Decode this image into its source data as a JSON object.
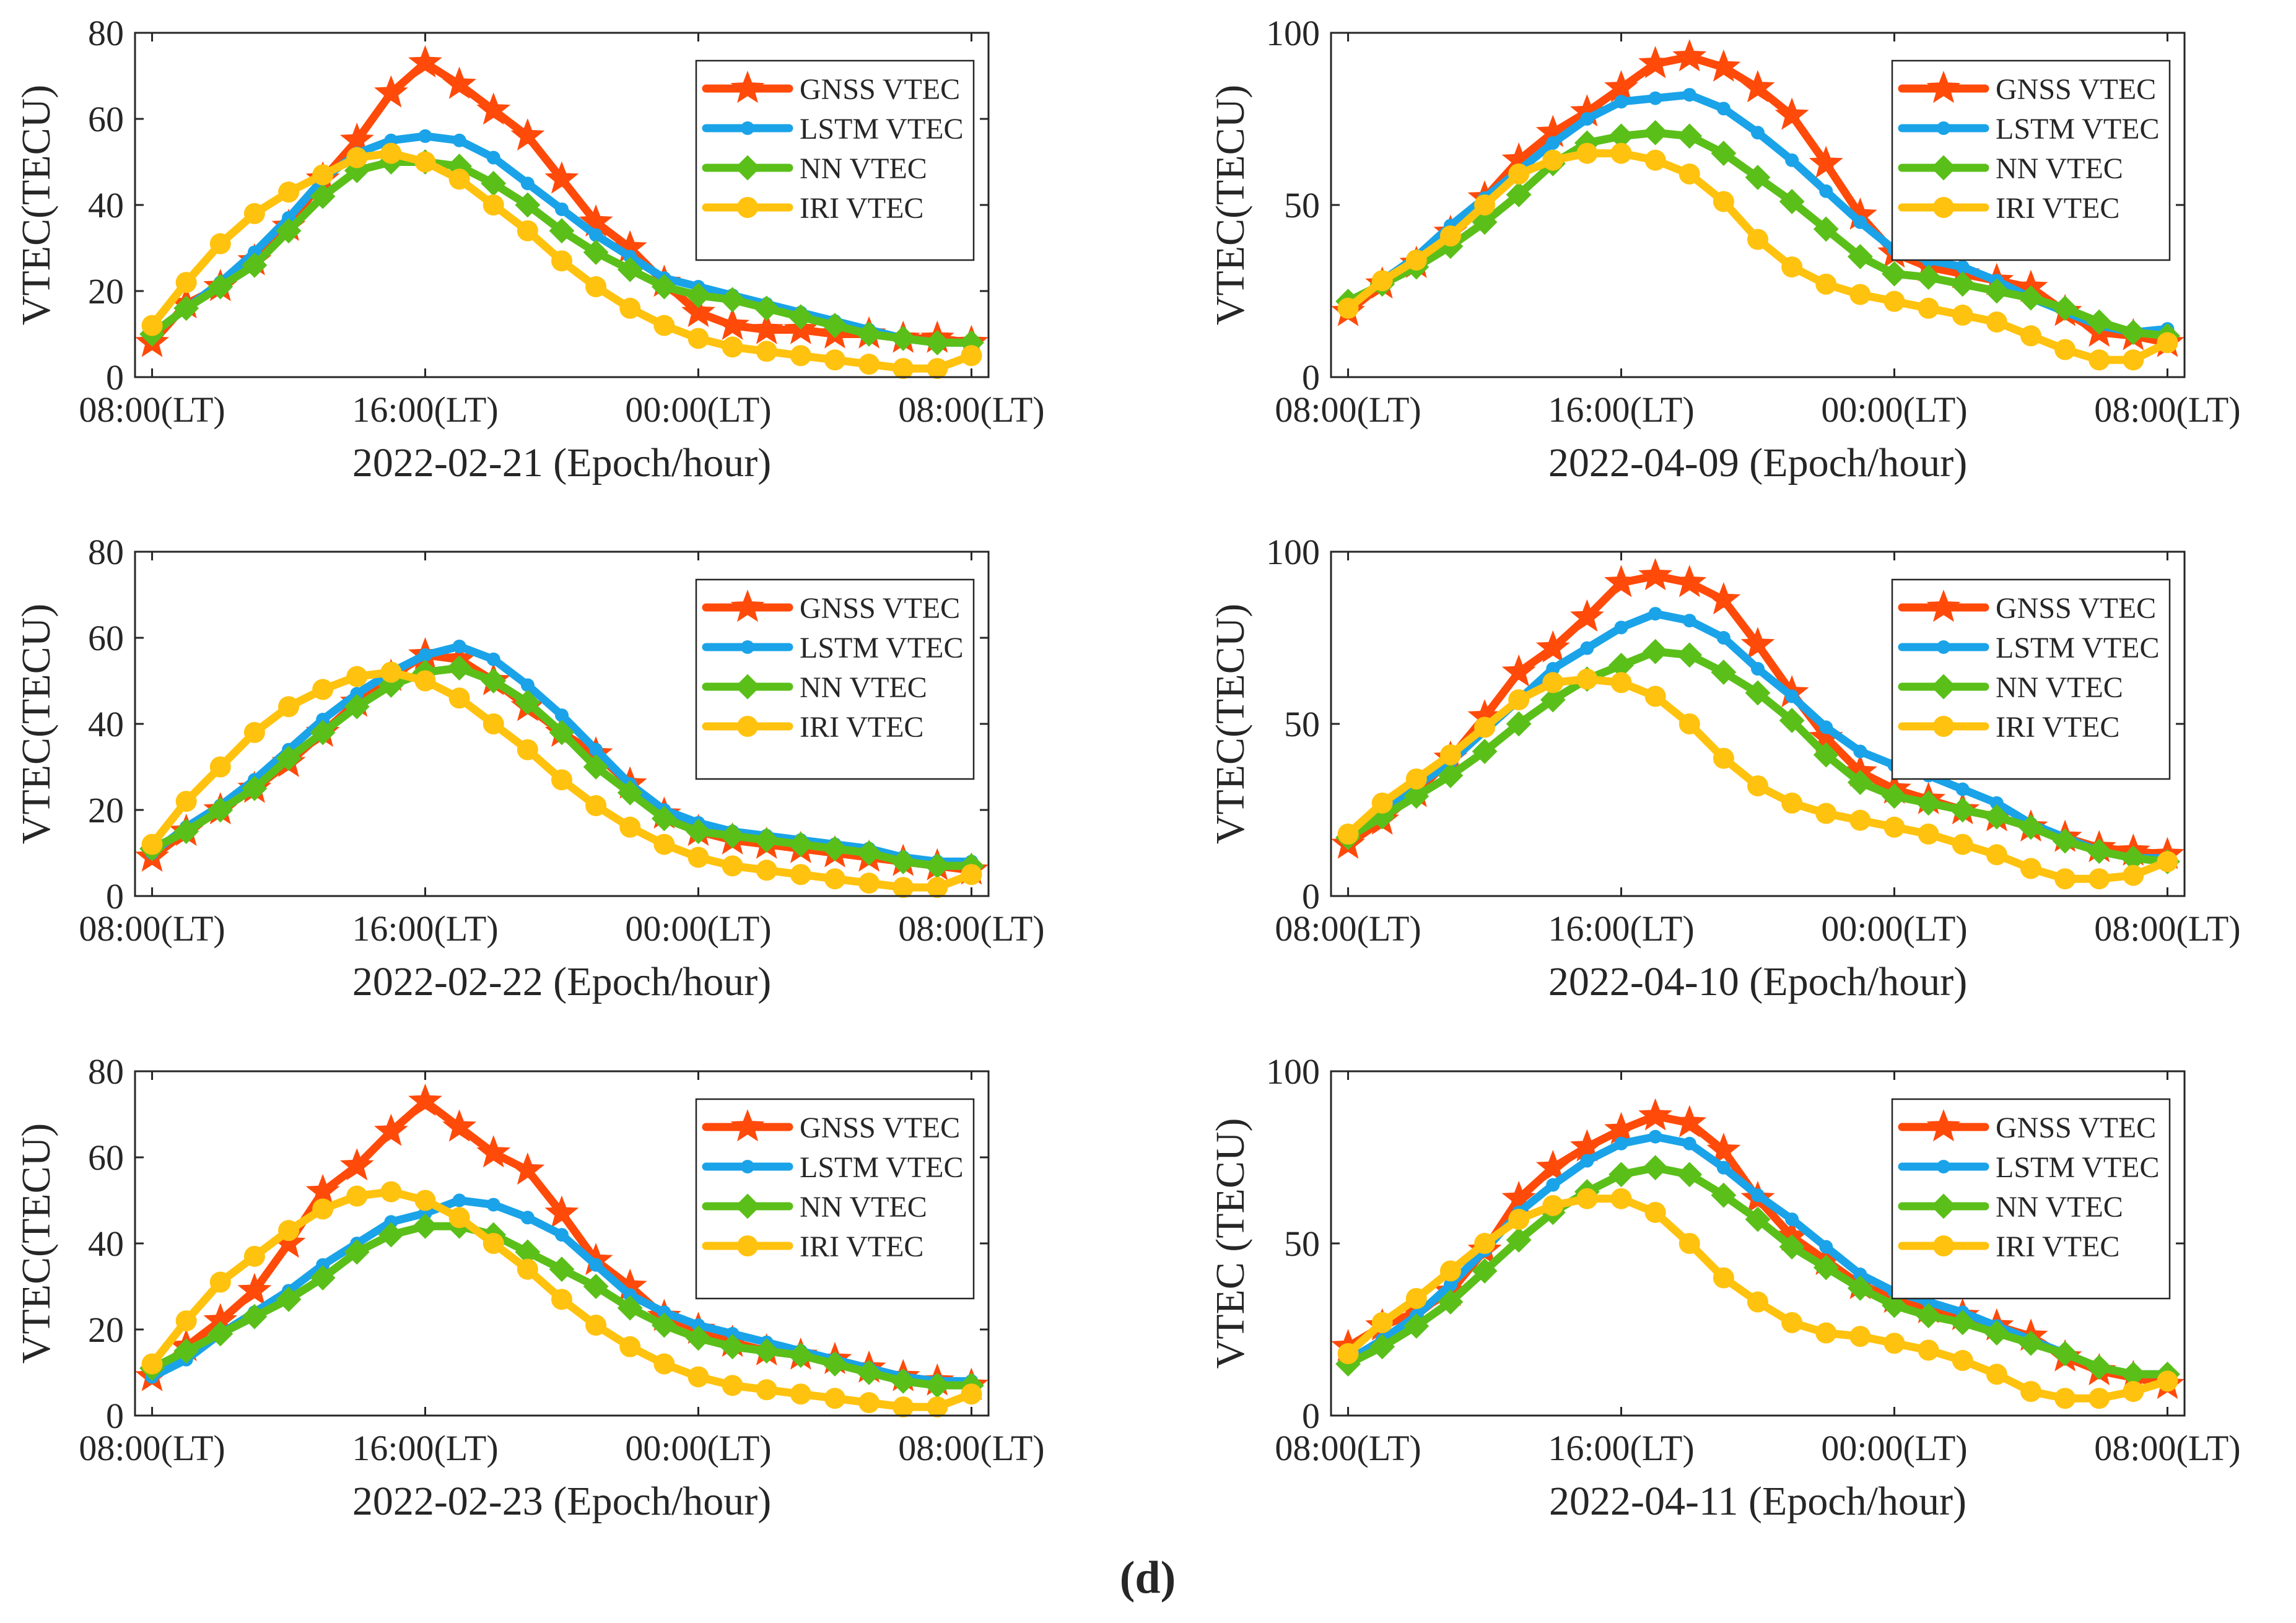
{
  "figure_label": "(d)",
  "x_tick_labels": [
    "08:00(LT)",
    "16:00(LT)",
    "00:00(LT)",
    "08:00(LT)"
  ],
  "colors": {
    "GNSS VTEC": "#FF4A0A",
    "LSTM VTEC": "#1AA3E8",
    "NN VTEC": "#5BBF1A",
    "IRI VTEC": "#FFC20E"
  },
  "markers": {
    "GNSS VTEC": "star",
    "LSTM VTEC": "circle-small",
    "NN VTEC": "diamond",
    "IRI VTEC": "circle"
  },
  "chart_data": [
    {
      "type": "line",
      "xlabel": "2022-02-21 (Epoch/hour)",
      "ylabel": "VTEC(TECU)",
      "ylim": [
        0,
        80
      ],
      "yticks": [
        0,
        20,
        40,
        60,
        80
      ],
      "x": [
        0,
        1,
        2,
        3,
        4,
        5,
        6,
        7,
        8,
        9,
        10,
        11,
        12,
        13,
        14,
        15,
        16,
        17,
        18,
        19,
        20,
        21,
        22,
        23,
        24
      ],
      "xlim": [
        -0.5,
        24.5
      ],
      "legend": "top-right",
      "series": [
        {
          "name": "GNSS VTEC",
          "values": [
            8,
            17,
            21,
            27,
            35,
            46,
            55,
            66,
            73,
            68,
            62,
            56,
            46,
            36,
            30,
            22,
            15,
            12,
            11,
            11,
            10,
            10,
            9,
            9,
            8
          ]
        },
        {
          "name": "LSTM VTEC",
          "values": [
            10,
            16,
            22,
            29,
            37,
            46,
            52,
            55,
            56,
            55,
            51,
            45,
            39,
            33,
            28,
            23,
            21,
            19,
            17,
            15,
            13,
            11,
            9,
            8,
            8
          ]
        },
        {
          "name": "NN VTEC",
          "values": [
            10,
            16,
            21,
            26,
            34,
            42,
            48,
            50,
            50,
            49,
            45,
            40,
            34,
            29,
            25,
            21,
            19,
            18,
            16,
            14,
            12,
            10,
            9,
            8,
            8
          ]
        },
        {
          "name": "IRI VTEC",
          "values": [
            12,
            22,
            31,
            38,
            43,
            47,
            51,
            52,
            50,
            46,
            40,
            34,
            27,
            21,
            16,
            12,
            9,
            7,
            6,
            5,
            4,
            3,
            2,
            2,
            5
          ]
        }
      ]
    },
    {
      "type": "line",
      "xlabel": "2022-04-09 (Epoch/hour)",
      "ylabel": "VTEC(TECU)",
      "ylim": [
        0,
        100
      ],
      "yticks": [
        0,
        50,
        100
      ],
      "x": [
        0,
        1,
        2,
        3,
        4,
        5,
        6,
        7,
        8,
        9,
        10,
        11,
        12,
        13,
        14,
        15,
        16,
        17,
        18,
        19,
        20,
        21,
        22,
        23,
        24
      ],
      "xlim": [
        -0.5,
        24.5
      ],
      "legend": "top-right",
      "series": [
        {
          "name": "GNSS VTEC",
          "values": [
            19,
            27,
            33,
            42,
            52,
            63,
            71,
            77,
            84,
            91,
            93,
            90,
            84,
            76,
            62,
            47,
            36,
            32,
            30,
            28,
            26,
            19,
            13,
            12,
            10
          ]
        },
        {
          "name": "LSTM VTEC",
          "values": [
            20,
            28,
            35,
            44,
            52,
            60,
            68,
            75,
            80,
            81,
            82,
            78,
            71,
            63,
            54,
            45,
            37,
            34,
            32,
            28,
            23,
            19,
            15,
            13,
            14
          ]
        },
        {
          "name": "NN VTEC",
          "values": [
            22,
            27,
            32,
            38,
            45,
            53,
            62,
            68,
            70,
            71,
            70,
            65,
            58,
            51,
            43,
            35,
            30,
            29,
            27,
            25,
            23,
            20,
            16,
            13,
            12
          ]
        },
        {
          "name": "IRI VTEC",
          "values": [
            20,
            28,
            34,
            41,
            50,
            59,
            63,
            65,
            65,
            63,
            59,
            51,
            40,
            32,
            27,
            24,
            22,
            20,
            18,
            16,
            12,
            8,
            5,
            5,
            10
          ]
        }
      ]
    },
    {
      "type": "line",
      "xlabel": "2022-02-22 (Epoch/hour)",
      "ylabel": "VTEC(TECU)",
      "ylim": [
        0,
        80
      ],
      "yticks": [
        0,
        20,
        40,
        60,
        80
      ],
      "x": [
        0,
        1,
        2,
        3,
        4,
        5,
        6,
        7,
        8,
        9,
        10,
        11,
        12,
        13,
        14,
        15,
        16,
        17,
        18,
        19,
        20,
        21,
        22,
        23,
        24
      ],
      "xlim": [
        -0.5,
        24.5
      ],
      "legend": "top-right",
      "series": [
        {
          "name": "GNSS VTEC",
          "values": [
            9,
            15,
            20,
            25,
            31,
            38,
            45,
            51,
            56,
            55,
            50,
            44,
            38,
            33,
            26,
            19,
            15,
            13,
            12,
            11,
            10,
            9,
            8,
            7,
            6
          ]
        },
        {
          "name": "LSTM VTEC",
          "values": [
            10,
            16,
            21,
            27,
            34,
            41,
            47,
            52,
            56,
            58,
            55,
            49,
            42,
            34,
            26,
            20,
            17,
            15,
            14,
            13,
            12,
            11,
            9,
            8,
            8
          ]
        },
        {
          "name": "NN VTEC",
          "values": [
            11,
            15,
            20,
            25,
            32,
            38,
            44,
            49,
            52,
            53,
            50,
            45,
            38,
            30,
            24,
            18,
            15,
            14,
            13,
            12,
            11,
            10,
            8,
            7,
            7
          ]
        },
        {
          "name": "IRI VTEC",
          "values": [
            12,
            22,
            30,
            38,
            44,
            48,
            51,
            52,
            50,
            46,
            40,
            34,
            27,
            21,
            16,
            12,
            9,
            7,
            6,
            5,
            4,
            3,
            2,
            2,
            5
          ]
        }
      ]
    },
    {
      "type": "line",
      "xlabel": "2022-04-10 (Epoch/hour)",
      "ylabel": "VTEC(TECU)",
      "ylim": [
        0,
        100
      ],
      "yticks": [
        0,
        50,
        100
      ],
      "x": [
        0,
        1,
        2,
        3,
        4,
        5,
        6,
        7,
        8,
        9,
        10,
        11,
        12,
        13,
        14,
        15,
        16,
        17,
        18,
        19,
        20,
        21,
        22,
        23,
        24
      ],
      "xlim": [
        -0.5,
        24.5
      ],
      "legend": "top-right",
      "series": [
        {
          "name": "GNSS VTEC",
          "values": [
            15,
            22,
            30,
            40,
            52,
            65,
            72,
            81,
            91,
            93,
            91,
            86,
            73,
            59,
            46,
            36,
            31,
            28,
            25,
            23,
            20,
            17,
            14,
            13,
            12
          ]
        },
        {
          "name": "LSTM VTEC",
          "values": [
            17,
            24,
            32,
            39,
            48,
            57,
            66,
            72,
            78,
            82,
            80,
            75,
            66,
            58,
            49,
            42,
            38,
            35,
            31,
            27,
            21,
            17,
            13,
            11,
            11
          ]
        },
        {
          "name": "NN VTEC",
          "values": [
            17,
            23,
            29,
            35,
            42,
            50,
            57,
            63,
            67,
            71,
            70,
            65,
            59,
            51,
            41,
            33,
            29,
            27,
            25,
            23,
            20,
            16,
            13,
            11,
            10
          ]
        },
        {
          "name": "IRI VTEC",
          "values": [
            18,
            27,
            34,
            41,
            49,
            57,
            62,
            63,
            62,
            58,
            50,
            40,
            32,
            27,
            24,
            22,
            20,
            18,
            15,
            12,
            8,
            5,
            5,
            6,
            10
          ]
        }
      ]
    },
    {
      "type": "line",
      "xlabel": "2022-02-23 (Epoch/hour)",
      "ylabel": "VTEC(TECU)",
      "ylim": [
        0,
        80
      ],
      "yticks": [
        0,
        20,
        40,
        60,
        80
      ],
      "x": [
        0,
        1,
        2,
        3,
        4,
        5,
        6,
        7,
        8,
        9,
        10,
        11,
        12,
        13,
        14,
        15,
        16,
        17,
        18,
        19,
        20,
        21,
        22,
        23,
        24
      ],
      "xlim": [
        -0.5,
        24.5
      ],
      "legend": "top-right",
      "series": [
        {
          "name": "GNSS VTEC",
          "values": [
            9,
            16,
            22,
            29,
            40,
            52,
            58,
            66,
            73,
            67,
            61,
            57,
            47,
            36,
            30,
            23,
            20,
            17,
            15,
            14,
            13,
            11,
            9,
            8,
            7
          ]
        },
        {
          "name": "LSTM VTEC",
          "values": [
            9,
            13,
            19,
            24,
            29,
            35,
            40,
            45,
            47,
            50,
            49,
            46,
            42,
            35,
            28,
            24,
            21,
            19,
            17,
            15,
            13,
            11,
            9,
            8,
            8
          ]
        },
        {
          "name": "NN VTEC",
          "values": [
            11,
            15,
            19,
            23,
            27,
            32,
            38,
            42,
            44,
            44,
            42,
            38,
            34,
            30,
            25,
            21,
            18,
            16,
            15,
            14,
            12,
            10,
            8,
            7,
            7
          ]
        },
        {
          "name": "IRI VTEC",
          "values": [
            12,
            22,
            31,
            37,
            43,
            48,
            51,
            52,
            50,
            46,
            40,
            34,
            27,
            21,
            16,
            12,
            9,
            7,
            6,
            5,
            4,
            3,
            2,
            2,
            5
          ]
        }
      ]
    },
    {
      "type": "line",
      "xlabel": "2022-04-11 (Epoch/hour)",
      "ylabel": "VTEC (TECU)",
      "ylim": [
        0,
        100
      ],
      "yticks": [
        0,
        50,
        100
      ],
      "x": [
        0,
        1,
        2,
        3,
        4,
        5,
        6,
        7,
        8,
        9,
        10,
        11,
        12,
        13,
        14,
        15,
        16,
        17,
        18,
        19,
        20,
        21,
        22,
        23,
        24
      ],
      "xlim": [
        -0.5,
        24.5
      ],
      "legend": "top-right",
      "series": [
        {
          "name": "GNSS VTEC",
          "values": [
            20,
            26,
            30,
            36,
            48,
            63,
            72,
            78,
            83,
            87,
            85,
            77,
            63,
            52,
            45,
            38,
            34,
            31,
            29,
            26,
            23,
            17,
            13,
            11,
            9
          ]
        },
        {
          "name": "LSTM VTEC",
          "values": [
            16,
            22,
            29,
            38,
            48,
            59,
            67,
            74,
            79,
            81,
            79,
            72,
            64,
            57,
            49,
            41,
            36,
            33,
            30,
            26,
            22,
            18,
            14,
            12,
            12
          ]
        },
        {
          "name": "NN VTEC",
          "values": [
            15,
            20,
            26,
            33,
            42,
            51,
            59,
            65,
            70,
            72,
            70,
            64,
            57,
            49,
            43,
            37,
            32,
            29,
            27,
            24,
            21,
            18,
            14,
            12,
            12
          ]
        },
        {
          "name": "IRI VTEC",
          "values": [
            18,
            27,
            34,
            42,
            50,
            57,
            61,
            63,
            63,
            59,
            50,
            40,
            33,
            27,
            24,
            23,
            21,
            19,
            16,
            12,
            7,
            5,
            5,
            7,
            10
          ]
        }
      ]
    }
  ]
}
